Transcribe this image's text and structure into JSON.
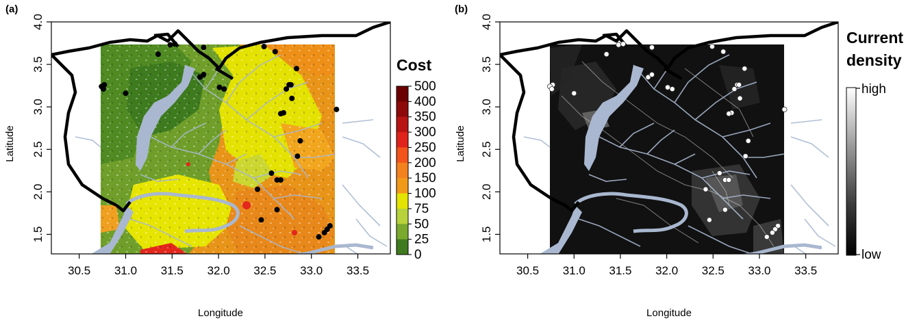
{
  "panels": [
    {
      "id": "a",
      "label": "(a)",
      "xlabel": "Longitude",
      "ylabel": "Latitude",
      "x_ticks": [
        "30.5",
        "31.0",
        "31.5",
        "32.0",
        "32.5",
        "33.0",
        "33.5"
      ],
      "y_ticks": [
        "1.5",
        "2.0",
        "2.5",
        "3.0",
        "3.5",
        "4.0"
      ],
      "legend": {
        "title_lines": [
          "Cost"
        ],
        "labels": [
          "500",
          "400",
          "350",
          "300",
          "250",
          "200",
          "150",
          "100",
          "75",
          "50",
          "25",
          "0"
        ],
        "colors": [
          "#6b0000",
          "#8e0a0a",
          "#b81414",
          "#e0231b",
          "#f2541b",
          "#f3811e",
          "#f19a1a",
          "#e5e400",
          "#b7d23a",
          "#7aa92e",
          "#3f7a1e",
          "#0d2a08"
        ]
      }
    },
    {
      "id": "b",
      "label": "(b)",
      "xlabel": "Longitude",
      "ylabel": "Latitude",
      "x_ticks": [
        "30.5",
        "31.0",
        "31.5",
        "32.0",
        "32.5",
        "33.0",
        "33.5"
      ],
      "y_ticks": [
        "1.5",
        "2.0",
        "2.5",
        "3.0",
        "3.5",
        "4.0"
      ],
      "legend": {
        "title_lines": [
          "Current",
          "density"
        ],
        "high_label": "high",
        "low_label": "low"
      }
    }
  ],
  "map": {
    "xlim": [
      30.2,
      33.85
    ],
    "ylim": [
      1.27,
      4.0
    ],
    "raster_extent": {
      "lon": [
        30.75,
        33.25
      ],
      "lat": [
        1.45,
        3.75
      ]
    },
    "water_color": "#a9b8d0",
    "sites": [
      [
        31.35,
        3.62
      ],
      [
        31.48,
        3.73
      ],
      [
        31.53,
        3.74
      ],
      [
        31.8,
        3.35
      ],
      [
        31.84,
        3.38
      ],
      [
        31.84,
        3.7
      ],
      [
        32.01,
        3.23
      ],
      [
        32.06,
        3.21
      ],
      [
        32.49,
        3.71
      ],
      [
        32.61,
        3.65
      ],
      [
        32.84,
        3.45
      ],
      [
        32.76,
        3.26
      ],
      [
        32.73,
        3.21
      ],
      [
        32.78,
        3.26
      ],
      [
        32.79,
        3.1
      ],
      [
        32.7,
        2.93
      ],
      [
        32.67,
        2.92
      ],
      [
        33.27,
        2.97
      ],
      [
        32.88,
        2.6
      ],
      [
        32.85,
        2.42
      ],
      [
        32.57,
        2.22
      ],
      [
        32.63,
        2.14
      ],
      [
        32.67,
        2.14
      ],
      [
        32.42,
        2.03
      ],
      [
        32.63,
        1.79
      ],
      [
        32.46,
        1.67
      ],
      [
        33.2,
        1.6
      ],
      [
        33.17,
        1.56
      ],
      [
        33.14,
        1.52
      ],
      [
        33.08,
        1.47
      ],
      [
        31.0,
        3.16
      ],
      [
        30.77,
        3.26
      ],
      [
        30.74,
        3.24
      ],
      [
        30.76,
        3.21
      ]
    ]
  }
}
